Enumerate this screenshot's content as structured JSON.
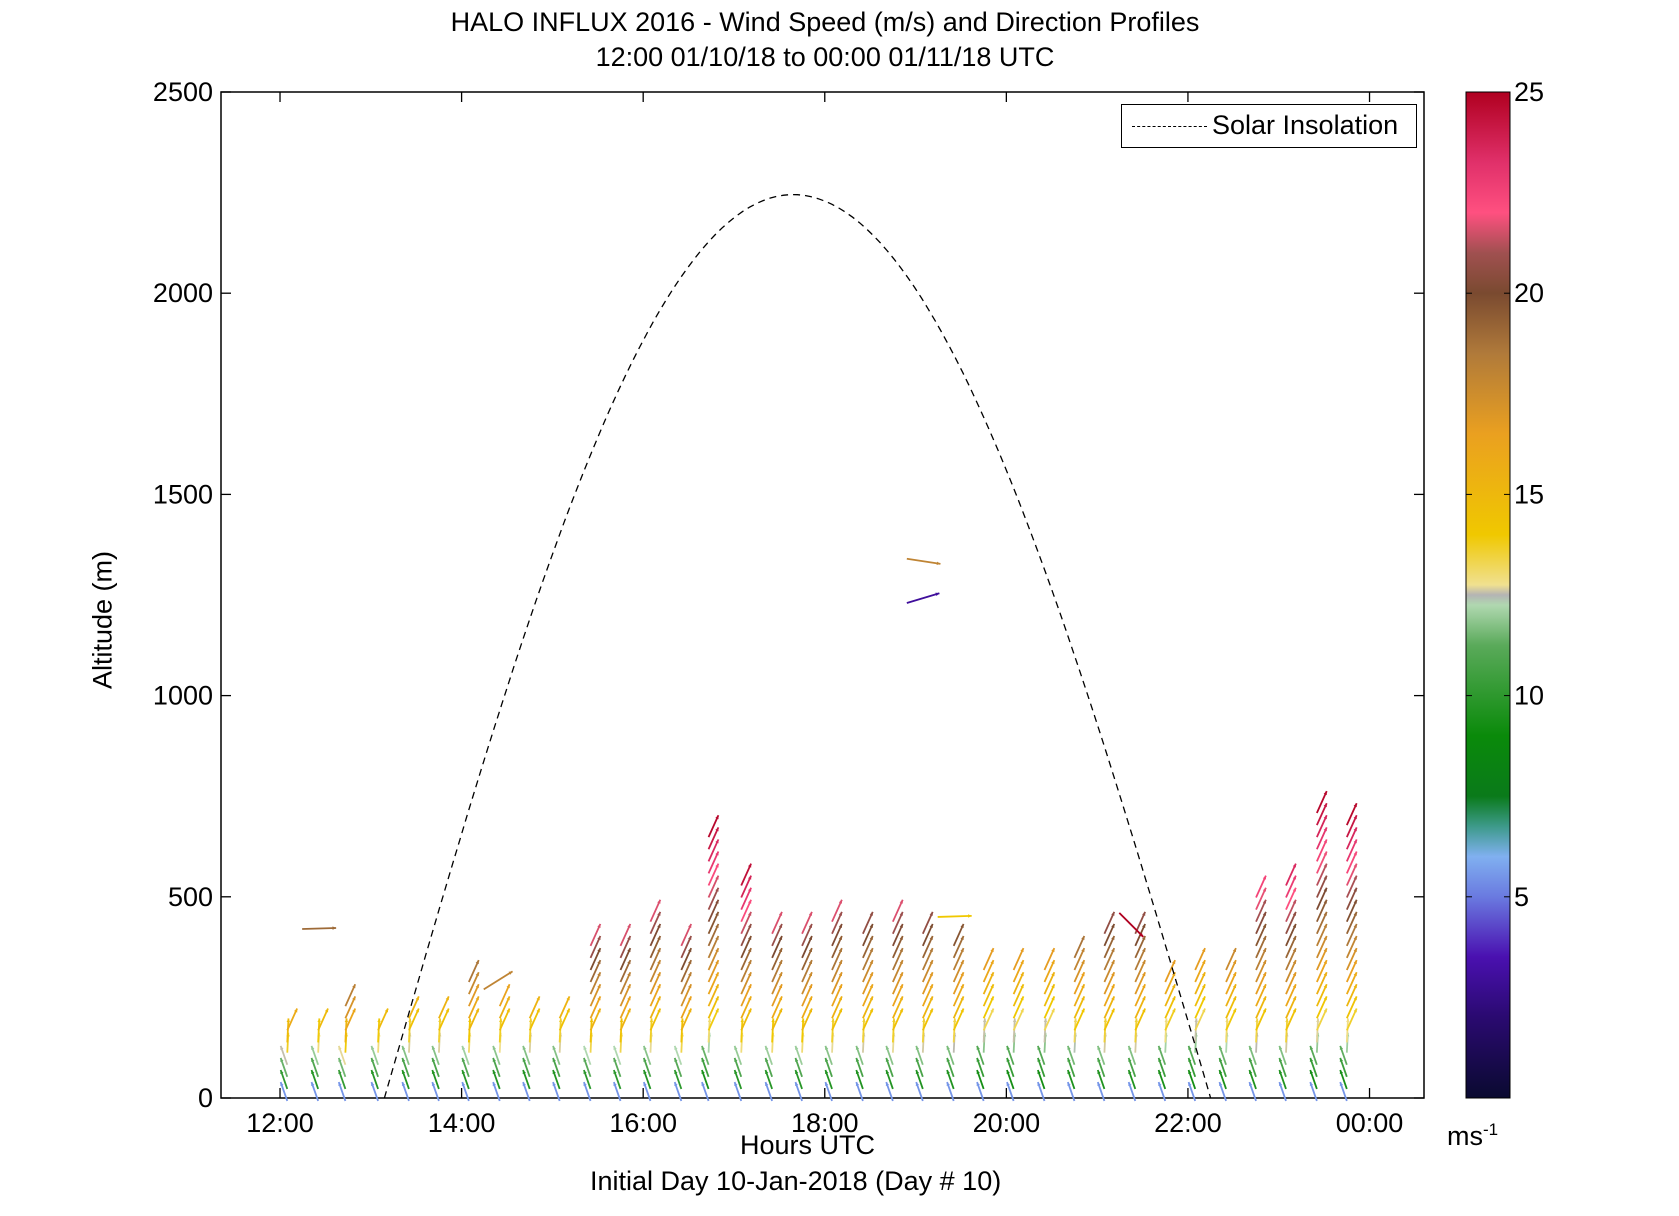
{
  "chart_data": {
    "type": "quiver",
    "title": "HALO INFLUX 2016 - Wind Speed (m/s) and Direction Profiles",
    "subtitle": "12:00 01/10/18 to 00:00 01/11/18  UTC",
    "xlabel": "Hours UTC",
    "ylabel": "Altitude (m)",
    "footer": "Initial Day 10-Jan-2018 (Day # 10)",
    "xlim": [
      11.35,
      24.6
    ],
    "ylim": [
      0,
      2500
    ],
    "x_ticks": [
      "12:00",
      "14:00",
      "16:00",
      "18:00",
      "20:00",
      "22:00",
      "00:00"
    ],
    "x_tick_values": [
      12,
      14,
      16,
      18,
      20,
      22,
      24
    ],
    "y_ticks": [
      0,
      500,
      1000,
      1500,
      2000,
      2500
    ],
    "legend": {
      "label": "Solar Insolation",
      "position": "top-right",
      "style": "dashed black line"
    },
    "solar_insolation": {
      "sunrise": 13.15,
      "peak_time": 17.65,
      "peak_altitude": 2245,
      "sunset": 22.25
    },
    "colorbar": {
      "min": 0,
      "max": 25,
      "ticks": [
        5,
        10,
        15,
        20,
        25
      ],
      "unit": "ms",
      "unit_exp": "-1"
    },
    "profiles": [
      {
        "t": 12.08,
        "top": 200,
        "max_speed": 16
      },
      {
        "t": 12.42,
        "top": 200,
        "max_speed": 15
      },
      {
        "t": 12.72,
        "top": 280,
        "max_speed": 19
      },
      {
        "t": 13.08,
        "top": 200,
        "max_speed": 15
      },
      {
        "t": 13.42,
        "top": 250,
        "max_speed": 16
      },
      {
        "t": 13.75,
        "top": 250,
        "max_speed": 16
      },
      {
        "t": 14.08,
        "top": 330,
        "max_speed": 19
      },
      {
        "t": 14.42,
        "top": 280,
        "max_speed": 17
      },
      {
        "t": 14.75,
        "top": 250,
        "max_speed": 16
      },
      {
        "t": 15.08,
        "top": 250,
        "max_speed": 16
      },
      {
        "t": 15.42,
        "top": 420,
        "max_speed": 22
      },
      {
        "t": 15.75,
        "top": 420,
        "max_speed": 22
      },
      {
        "t": 16.08,
        "top": 480,
        "max_speed": 22
      },
      {
        "t": 16.42,
        "top": 420,
        "max_speed": 22
      },
      {
        "t": 16.72,
        "top": 690,
        "max_speed": 25
      },
      {
        "t": 17.08,
        "top": 580,
        "max_speed": 25
      },
      {
        "t": 17.42,
        "top": 450,
        "max_speed": 22
      },
      {
        "t": 17.75,
        "top": 450,
        "max_speed": 22
      },
      {
        "t": 18.08,
        "top": 480,
        "max_speed": 22
      },
      {
        "t": 18.42,
        "top": 450,
        "max_speed": 21
      },
      {
        "t": 18.75,
        "top": 480,
        "max_speed": 22
      },
      {
        "t": 19.08,
        "top": 450,
        "max_speed": 21
      },
      {
        "t": 19.42,
        "top": 420,
        "max_speed": 20
      },
      {
        "t": 19.75,
        "top": 360,
        "max_speed": 17
      },
      {
        "t": 20.08,
        "top": 360,
        "max_speed": 17
      },
      {
        "t": 20.42,
        "top": 360,
        "max_speed": 17
      },
      {
        "t": 20.75,
        "top": 390,
        "max_speed": 19
      },
      {
        "t": 21.08,
        "top": 450,
        "max_speed": 21
      },
      {
        "t": 21.42,
        "top": 450,
        "max_speed": 21
      },
      {
        "t": 21.75,
        "top": 330,
        "max_speed": 17
      },
      {
        "t": 22.08,
        "top": 360,
        "max_speed": 17
      },
      {
        "t": 22.42,
        "top": 360,
        "max_speed": 18
      },
      {
        "t": 22.75,
        "top": 550,
        "max_speed": 23
      },
      {
        "t": 23.08,
        "top": 580,
        "max_speed": 24
      },
      {
        "t": 23.42,
        "top": 750,
        "max_speed": 25
      },
      {
        "t": 23.75,
        "top": 720,
        "max_speed": 25
      }
    ],
    "isolated_vectors": [
      {
        "t": 12.42,
        "alt": 420,
        "speed": 19,
        "u": 1,
        "v": 0.03
      },
      {
        "t": 14.42,
        "alt": 270,
        "speed": 18,
        "u": 0.8,
        "v": 0.5
      },
      {
        "t": 19.08,
        "alt": 1340,
        "speed": 18,
        "u": 1,
        "v": -0.15
      },
      {
        "t": 19.08,
        "alt": 1230,
        "speed": 3,
        "u": 1,
        "v": 0.3
      },
      {
        "t": 19.42,
        "alt": 450,
        "speed": 14,
        "u": 1,
        "v": 0.03
      },
      {
        "t": 21.42,
        "alt": 460,
        "speed": 25,
        "u": 0.6,
        "v": -0.6
      }
    ]
  }
}
